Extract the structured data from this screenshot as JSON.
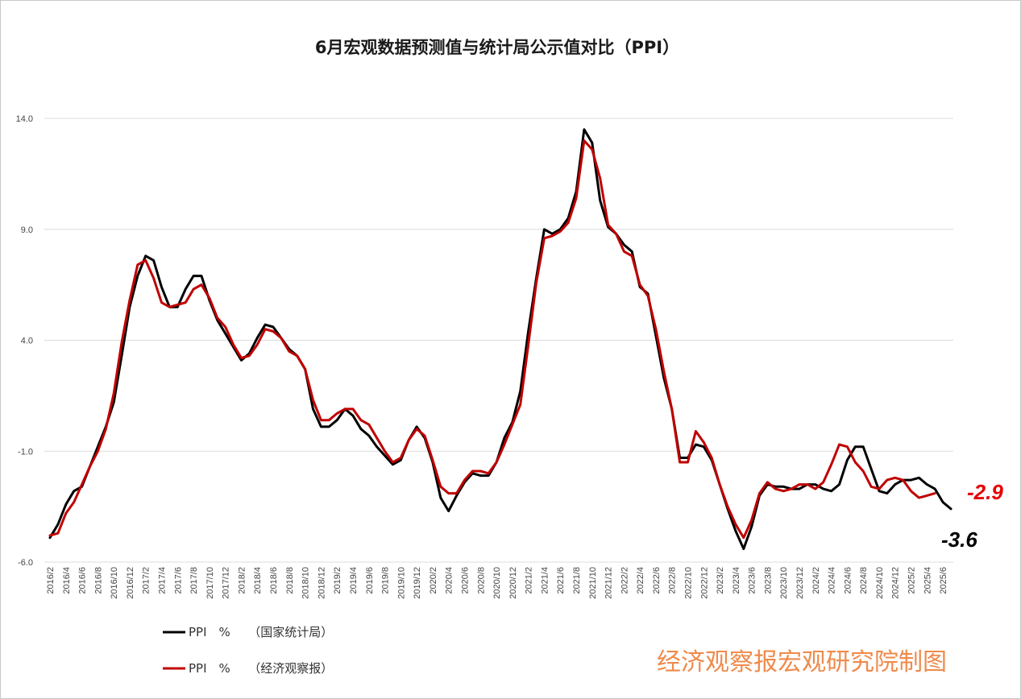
{
  "page": {
    "title": "6月宏观数据预测值与统计局公示值对比（PPI）",
    "watermark": "经济观察报宏观研究院制图"
  },
  "colors": {
    "official": "#000000",
    "forecast": "#c00000",
    "callout_forecast": "#e60000",
    "callout_official": "#000000",
    "watermark": "#ef8a4a"
  },
  "chart_data": {
    "type": "line",
    "title": "6月宏观数据预测值与统计局公示值对比（PPI）",
    "xlabel": "",
    "ylabel": "",
    "ylim": [
      -6.0,
      14.0
    ],
    "y_ticks": [
      "14.0",
      "9.0",
      "4.0",
      "-1.0",
      "-6.0"
    ],
    "grid": true,
    "legend_position": "bottom-left",
    "x_start": "2016/2",
    "x_ticks": [
      "2016/2",
      "2016/4",
      "2016/6",
      "2016/8",
      "2016/10",
      "2016/12",
      "2017/2",
      "2017/4",
      "2017/6",
      "2017/8",
      "2017/10",
      "2017/12",
      "2018/2",
      "2018/4",
      "2018/6",
      "2018/8",
      "2018/10",
      "2018/12",
      "2019/2",
      "2019/4",
      "2019/6",
      "2019/8",
      "2019/10",
      "2019/12",
      "2020/2",
      "2020/4",
      "2020/6",
      "2020/8",
      "2020/10",
      "2020/12",
      "2021/2",
      "2021/4",
      "2021/6",
      "2021/8",
      "2021/10",
      "2021/12",
      "2022/2",
      "2022/4",
      "2022/6",
      "2022/8",
      "2022/10",
      "2022/12",
      "2023/2",
      "2023/4",
      "2023/6",
      "2023/8",
      "2023/10",
      "2023/12",
      "2024/2",
      "2024/4",
      "2024/6",
      "2024/8",
      "2024/10",
      "2024/12",
      "2025/2",
      "2025/4",
      "2025/6"
    ],
    "series": [
      {
        "name": "PPI　%　　（国家统计局）",
        "color": "#000000",
        "values": [
          -4.9,
          -4.3,
          -3.4,
          -2.8,
          -2.6,
          -1.7,
          -0.8,
          0.1,
          1.2,
          3.3,
          5.5,
          6.9,
          7.8,
          7.6,
          6.4,
          5.5,
          5.5,
          6.3,
          6.9,
          6.9,
          5.8,
          4.9,
          4.3,
          3.7,
          3.1,
          3.4,
          4.1,
          4.7,
          4.6,
          4.1,
          3.6,
          3.3,
          2.7,
          0.9,
          0.1,
          0.1,
          0.4,
          0.9,
          0.6,
          0.0,
          -0.3,
          -0.8,
          -1.2,
          -1.6,
          -1.4,
          -0.5,
          0.1,
          -0.4,
          -1.5,
          -3.1,
          -3.7,
          -3.0,
          -2.4,
          -2.0,
          -2.1,
          -2.1,
          -1.5,
          -0.4,
          0.3,
          1.7,
          4.4,
          6.8,
          9.0,
          8.8,
          9.0,
          9.5,
          10.7,
          13.5,
          12.9,
          10.3,
          9.1,
          8.8,
          8.3,
          8.0,
          6.4,
          6.1,
          4.2,
          2.3,
          0.9,
          -1.3,
          -1.3,
          -0.7,
          -0.8,
          -1.4,
          -2.5,
          -3.6,
          -4.6,
          -5.4,
          -4.4,
          -3.0,
          -2.5,
          -2.6,
          -2.6,
          -2.7,
          -2.7,
          -2.5,
          -2.5,
          -2.7,
          -2.8,
          -2.5,
          -1.4,
          -0.8,
          -0.8,
          -1.8,
          -2.8,
          -2.9,
          -2.5,
          -2.3,
          -2.3,
          -2.2,
          -2.5,
          -2.7,
          -3.3,
          -3.6
        ]
      },
      {
        "name": "PPI　%　　（经济观察报）",
        "color": "#c00000",
        "values": [
          -4.8,
          -4.7,
          -3.8,
          -3.3,
          -2.5,
          -1.7,
          -1.0,
          0.0,
          1.6,
          3.9,
          5.8,
          7.4,
          7.6,
          6.8,
          5.7,
          5.5,
          5.6,
          5.7,
          6.3,
          6.5,
          5.9,
          5.0,
          4.6,
          3.8,
          3.2,
          3.3,
          3.8,
          4.5,
          4.4,
          4.1,
          3.5,
          3.3,
          2.7,
          1.3,
          0.4,
          0.4,
          0.7,
          0.9,
          0.9,
          0.4,
          0.2,
          -0.4,
          -1.0,
          -1.5,
          -1.3,
          -0.5,
          0.0,
          -0.3,
          -1.4,
          -2.6,
          -2.9,
          -2.9,
          -2.3,
          -1.9,
          -1.9,
          -2.0,
          -1.5,
          -0.7,
          0.2,
          1.1,
          3.8,
          6.6,
          8.6,
          8.7,
          8.9,
          9.3,
          10.4,
          13.0,
          12.6,
          11.3,
          9.2,
          8.8,
          8.0,
          7.8,
          6.5,
          6.0,
          4.5,
          2.6,
          0.9,
          -1.5,
          -1.5,
          -0.1,
          -0.6,
          -1.3,
          -2.5,
          -3.5,
          -4.3,
          -4.9,
          -4.1,
          -2.9,
          -2.4,
          -2.7,
          -2.8,
          -2.7,
          -2.5,
          -2.5,
          -2.7,
          -2.4,
          -1.6,
          -0.7,
          -0.8,
          -1.5,
          -1.9,
          -2.6,
          -2.7,
          -2.3,
          -2.2,
          -2.3,
          -2.8,
          -3.1,
          -3.0,
          -2.9
        ]
      }
    ],
    "annotations": [
      {
        "text": "-2.9",
        "color": "#e60000",
        "series": 1
      },
      {
        "text": "-3.6",
        "color": "#000000",
        "series": 0
      }
    ]
  }
}
